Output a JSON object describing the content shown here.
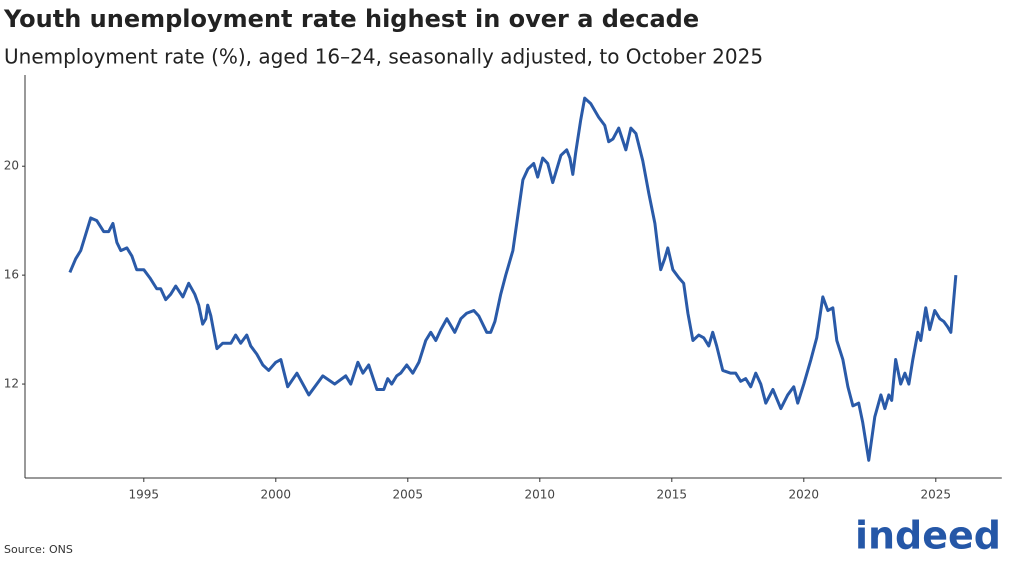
{
  "chart_data": {
    "type": "line",
    "title": "Youth unemployment rate highest in over a decade",
    "subtitle": "Unemployment rate (%), aged 16–24, seasonally adjusted, to October 2025",
    "source": "Source: ONS",
    "logo": "indeed",
    "x": [
      1992.2,
      1992.42,
      1992.61,
      1992.8,
      1992.99,
      1993.22,
      1993.48,
      1993.67,
      1993.83,
      1993.98,
      1994.13,
      1994.36,
      1994.55,
      1994.73,
      1995.0,
      1995.23,
      1995.49,
      1995.64,
      1995.83,
      1996.02,
      1996.21,
      1996.48,
      1996.7,
      1996.93,
      1997.08,
      1997.23,
      1997.35,
      1997.42,
      1997.54,
      1997.77,
      1997.99,
      1998.3,
      1998.48,
      1998.67,
      1998.9,
      1999.05,
      1999.28,
      1999.51,
      1999.73,
      2000.0,
      2000.19,
      2000.45,
      2000.8,
      2001.25,
      2001.78,
      2002.23,
      2002.65,
      2002.84,
      2003.11,
      2003.3,
      2003.52,
      2003.83,
      2004.09,
      2004.24,
      2004.39,
      2004.58,
      2004.73,
      2004.96,
      2005.19,
      2005.42,
      2005.68,
      2005.87,
      2006.06,
      2006.25,
      2006.48,
      2006.78,
      2007.01,
      2007.23,
      2007.5,
      2007.69,
      2007.99,
      2008.14,
      2008.3,
      2008.52,
      2008.71,
      2008.98,
      2009.17,
      2009.36,
      2009.55,
      2009.77,
      2009.92,
      2010.11,
      2010.3,
      2010.49,
      2010.8,
      2011.02,
      2011.14,
      2011.25,
      2011.36,
      2011.55,
      2011.7,
      2011.93,
      2012.23,
      2012.46,
      2012.61,
      2012.77,
      2012.99,
      2013.26,
      2013.45,
      2013.64,
      2013.9,
      2014.13,
      2014.36,
      2014.51,
      2014.58,
      2014.73,
      2014.85,
      2015.04,
      2015.27,
      2015.45,
      2015.61,
      2015.8,
      2016.02,
      2016.21,
      2016.4,
      2016.55,
      2016.7,
      2016.93,
      2017.23,
      2017.42,
      2017.61,
      2017.8,
      2017.99,
      2018.18,
      2018.37,
      2018.56,
      2018.83,
      2019.13,
      2019.39,
      2019.62,
      2019.77,
      2020.0,
      2020.27,
      2020.49,
      2020.72,
      2020.91,
      2021.1,
      2021.25,
      2021.48,
      2021.67,
      2021.86,
      2022.08,
      2022.23,
      2022.46,
      2022.69,
      2022.92,
      2023.07,
      2023.22,
      2023.33,
      2023.48,
      2023.67,
      2023.83,
      2023.98,
      2024.13,
      2024.32,
      2024.43,
      2024.62,
      2024.77,
      2024.96,
      2025.15,
      2025.3,
      2025.45,
      2025.57,
      2025.76
    ],
    "series": [
      {
        "name": "Unemployment rate",
        "color": "#2a5aa8",
        "values": [
          16.1,
          16.6,
          16.9,
          17.5,
          18.1,
          18.0,
          17.6,
          17.6,
          17.9,
          17.2,
          16.9,
          17.0,
          16.7,
          16.2,
          16.2,
          15.9,
          15.5,
          15.5,
          15.1,
          15.3,
          15.6,
          15.2,
          15.7,
          15.3,
          14.9,
          14.2,
          14.4,
          14.9,
          14.5,
          13.3,
          13.5,
          13.5,
          13.8,
          13.5,
          13.8,
          13.4,
          13.1,
          12.7,
          12.5,
          12.8,
          12.9,
          11.9,
          12.4,
          11.6,
          12.3,
          12.0,
          12.3,
          12.0,
          12.8,
          12.4,
          12.7,
          11.8,
          11.8,
          12.2,
          12.0,
          12.3,
          12.4,
          12.7,
          12.4,
          12.8,
          13.6,
          13.9,
          13.6,
          14.0,
          14.4,
          13.9,
          14.4,
          14.6,
          14.7,
          14.5,
          13.9,
          13.9,
          14.3,
          15.3,
          16.0,
          16.9,
          18.2,
          19.5,
          19.9,
          20.1,
          19.6,
          20.3,
          20.1,
          19.4,
          20.4,
          20.6,
          20.3,
          19.7,
          20.5,
          21.7,
          22.5,
          22.3,
          21.8,
          21.5,
          20.9,
          21.0,
          21.4,
          20.6,
          21.4,
          21.2,
          20.2,
          19.0,
          17.9,
          16.7,
          16.2,
          16.6,
          17.0,
          16.2,
          15.9,
          15.7,
          14.6,
          13.6,
          13.8,
          13.7,
          13.4,
          13.9,
          13.4,
          12.5,
          12.4,
          12.4,
          12.1,
          12.2,
          11.9,
          12.4,
          12.0,
          11.3,
          11.8,
          11.1,
          11.6,
          11.9,
          11.3,
          12.0,
          12.9,
          13.7,
          15.2,
          14.7,
          14.8,
          13.6,
          12.9,
          11.9,
          11.2,
          11.3,
          10.6,
          9.2,
          10.8,
          11.6,
          11.1,
          11.6,
          11.4,
          12.9,
          12.0,
          12.4,
          12.0,
          12.9,
          13.9,
          13.6,
          14.8,
          14.0,
          14.7,
          14.4,
          14.3,
          14.1,
          13.9,
          16.0
        ]
      }
    ],
    "xlim": [
      1990.5,
      2027.5
    ],
    "xticks": [
      1995,
      2000,
      2005,
      2010,
      2015,
      2020,
      2025
    ],
    "ylim": [
      8.55,
      23.35
    ],
    "yticks": [
      12,
      16,
      20
    ],
    "grid": false
  }
}
